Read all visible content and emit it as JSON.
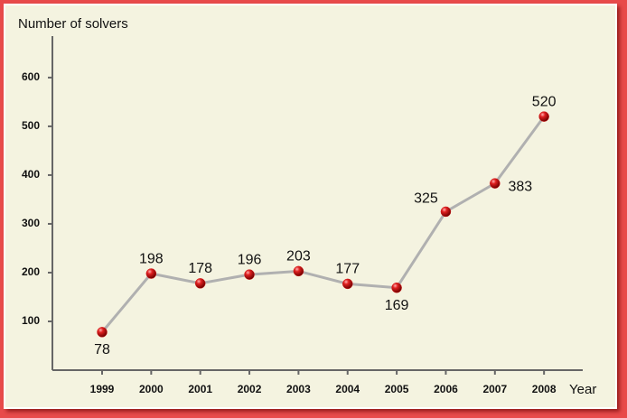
{
  "chart_data": {
    "type": "line",
    "y_label": "Number of solvers",
    "x_label": "Year",
    "categories": [
      "1999",
      "2000",
      "2001",
      "2002",
      "2003",
      "2004",
      "2005",
      "2006",
      "2007",
      "2008"
    ],
    "values": [
      78,
      198,
      178,
      196,
      203,
      177,
      169,
      325,
      383,
      520
    ],
    "color": "#b0b0b0",
    "marker_color": "#d41818",
    "ylim": [
      0,
      685
    ],
    "yticks": [
      100,
      200,
      300,
      400,
      500,
      600
    ]
  }
}
